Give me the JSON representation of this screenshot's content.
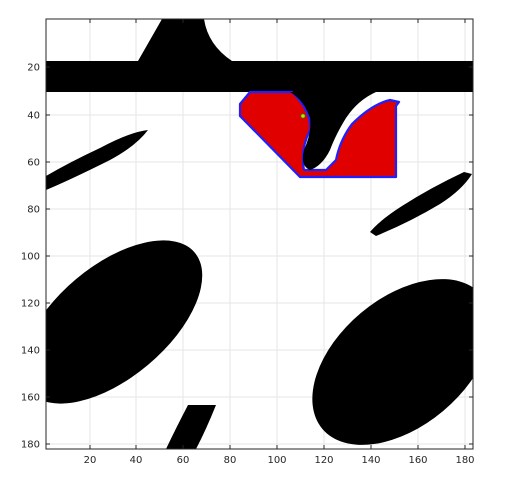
{
  "figure": {
    "x_ticks": [
      "20",
      "40",
      "60",
      "80",
      "100",
      "120",
      "140",
      "160",
      "180"
    ],
    "y_ticks": [
      "20",
      "40",
      "60",
      "80",
      "100",
      "120",
      "140",
      "160",
      "180"
    ],
    "grid": true,
    "colors": {
      "obstacle": "#000000",
      "free": "#ffffff",
      "region_fill": "#e00000",
      "region_outline": "#2020ff",
      "marker": "#c8e000",
      "axis": "#262626",
      "grid": "#e6e6e6"
    }
  }
}
